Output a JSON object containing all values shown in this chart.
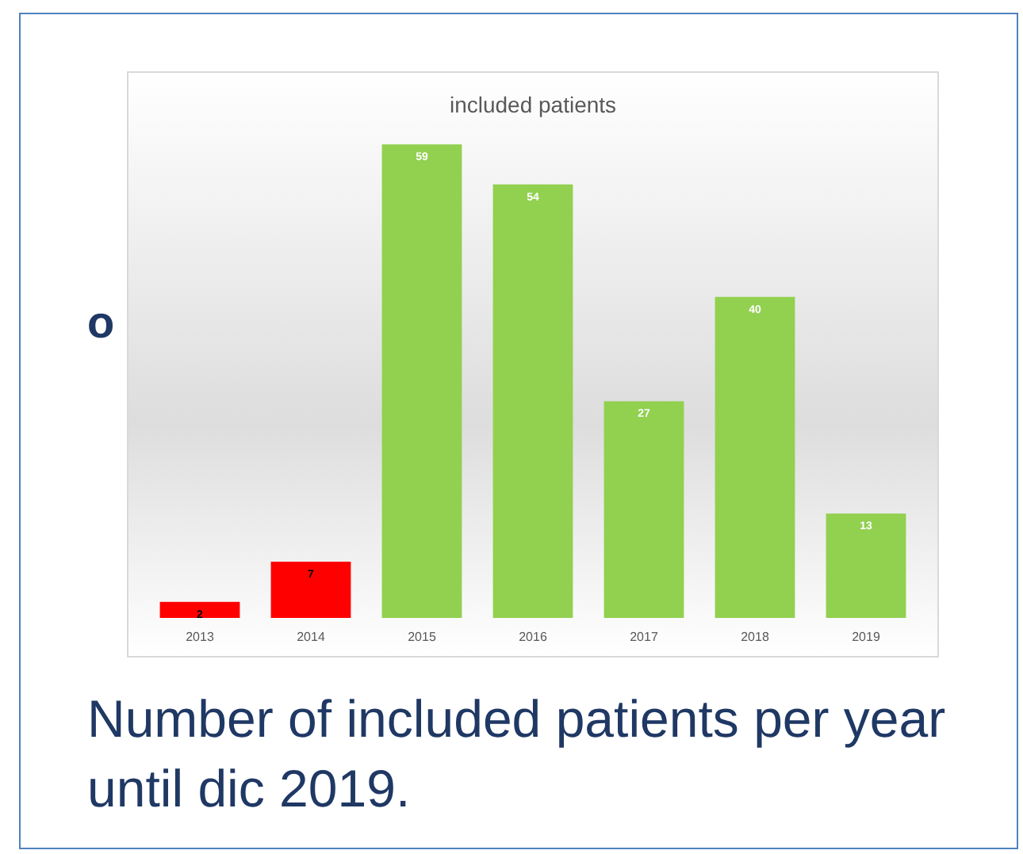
{
  "chart_data": {
    "type": "bar",
    "title": "included patients",
    "categories": [
      "2013",
      "2014",
      "2015",
      "2016",
      "2017",
      "2018",
      "2019"
    ],
    "values": [
      2,
      7,
      59,
      54,
      27,
      40,
      13
    ],
    "colors": [
      "#ff0000",
      "#ff0000",
      "#92d050",
      "#92d050",
      "#92d050",
      "#92d050",
      "#92d050"
    ],
    "data_labels": true,
    "annotations": [
      "o",
      "Number of included patients per year until dic 2019."
    ]
  }
}
